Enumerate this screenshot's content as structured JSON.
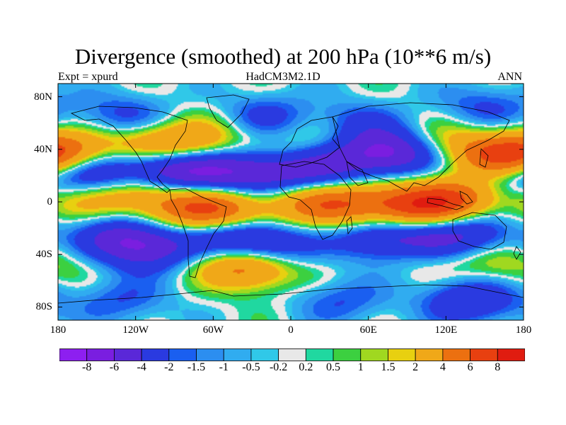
{
  "header": {
    "title": "Divergence (smoothed) at 200 hPa (10**6 m/s)",
    "left": "Expt = xpurd",
    "center": "HadCM3M2.1D",
    "right": "ANN"
  },
  "axes": {
    "y_ticks": [
      {
        "label": "80N",
        "lat": 80
      },
      {
        "label": "40N",
        "lat": 40
      },
      {
        "label": "0",
        "lat": 0
      },
      {
        "label": "40S",
        "lat": -40
      },
      {
        "label": "80S",
        "lat": -80
      }
    ],
    "x_ticks": [
      {
        "label": "180",
        "lon": -180
      },
      {
        "label": "120W",
        "lon": -120
      },
      {
        "label": "60W",
        "lon": -60
      },
      {
        "label": "0",
        "lon": 0
      },
      {
        "label": "60E",
        "lon": 60
      },
      {
        "label": "120E",
        "lon": 120
      },
      {
        "label": "180",
        "lon": 180
      }
    ],
    "lon_range": [
      -180,
      180
    ],
    "lat_range": [
      -90,
      90
    ]
  },
  "colorbar": {
    "labels": [
      "-8",
      "-6",
      "-4",
      "-2",
      "-1.5",
      "-1",
      "-0.5",
      "-0.2",
      "0.2",
      "0.5",
      "1",
      "1.5",
      "2",
      "4",
      "6",
      "8"
    ],
    "colors": [
      "#8d1ff0",
      "#7a1ee0",
      "#5a28d8",
      "#2a3ae0",
      "#1a5ff0",
      "#2c8ef0",
      "#30acf0",
      "#30c8e8",
      "#e8e8e8",
      "#20d8a0",
      "#3cd040",
      "#a0d820",
      "#e8d010",
      "#f0a818",
      "#ec7010",
      "#e84010",
      "#e01c10"
    ]
  },
  "field": {
    "blobs": [
      {
        "lon": -170,
        "lat": 37,
        "v": 3
      },
      {
        "lon": -110,
        "lat": 44,
        "v": 3.2
      },
      {
        "lon": -80,
        "lat": 40,
        "v": 2.8
      },
      {
        "lon": -60,
        "lat": 52,
        "v": 1.5
      },
      {
        "lon": -10,
        "lat": 32,
        "v": 1.2
      },
      {
        "lon": 25,
        "lat": 48,
        "v": 1.4
      },
      {
        "lon": 120,
        "lat": 45,
        "v": 2.5
      },
      {
        "lon": 160,
        "lat": 33,
        "v": 3.8
      },
      {
        "lon": 175,
        "lat": 36,
        "v": 3
      },
      {
        "lon": -120,
        "lat": 8,
        "v": 3.5
      },
      {
        "lon": -80,
        "lat": -5,
        "v": 3.8
      },
      {
        "lon": -40,
        "lat": -12,
        "v": 1.8
      },
      {
        "lon": -55,
        "lat": -5,
        "v": 3
      },
      {
        "lon": 10,
        "lat": 5,
        "v": 2.2
      },
      {
        "lon": 25,
        "lat": -5,
        "v": 3.2
      },
      {
        "lon": 60,
        "lat": 0,
        "v": 3.5
      },
      {
        "lon": 95,
        "lat": -5,
        "v": 3.5
      },
      {
        "lon": 115,
        "lat": -3,
        "v": 4
      },
      {
        "lon": 135,
        "lat": 5,
        "v": 3
      },
      {
        "lon": -160,
        "lat": 0,
        "v": 1.8
      },
      {
        "lon": -170,
        "lat": -25,
        "v": 2.5
      },
      {
        "lon": -40,
        "lat": -45,
        "v": 2.5
      },
      {
        "lon": -30,
        "lat": -50,
        "v": 3.8
      },
      {
        "lon": 100,
        "lat": -35,
        "v": 2
      },
      {
        "lon": 160,
        "lat": -45,
        "v": 2.5
      },
      {
        "lon": -150,
        "lat": 22,
        "v": -4.5
      },
      {
        "lon": -80,
        "lat": 22,
        "v": -4
      },
      {
        "lon": -100,
        "lat": 27,
        "v": -3.5
      },
      {
        "lon": -45,
        "lat": 25,
        "v": -3
      },
      {
        "lon": -20,
        "lat": 22,
        "v": -3.2
      },
      {
        "lon": 10,
        "lat": 22,
        "v": -3.5
      },
      {
        "lon": 40,
        "lat": 30,
        "v": -2.5
      },
      {
        "lon": 70,
        "lat": 40,
        "v": -3.8
      },
      {
        "lon": 90,
        "lat": 36,
        "v": -3
      },
      {
        "lon": 170,
        "lat": 20,
        "v": -2.5
      },
      {
        "lon": -140,
        "lat": -25,
        "v": -4.2
      },
      {
        "lon": -110,
        "lat": -35,
        "v": -5
      },
      {
        "lon": -40,
        "lat": -27,
        "v": -4.8
      },
      {
        "lon": -15,
        "lat": -35,
        "v": -3.5
      },
      {
        "lon": 70,
        "lat": -27,
        "v": -4.5
      },
      {
        "lon": 110,
        "lat": -30,
        "v": -4
      },
      {
        "lon": 140,
        "lat": -20,
        "v": -3
      },
      {
        "lon": 170,
        "lat": -30,
        "v": -2.2
      },
      {
        "lon": -130,
        "lat": 65,
        "v": -2.5
      },
      {
        "lon": -20,
        "lat": 65,
        "v": -2.5
      },
      {
        "lon": 50,
        "lat": 60,
        "v": -2.2
      },
      {
        "lon": 140,
        "lat": -75,
        "v": -4
      },
      {
        "lon": -130,
        "lat": -75,
        "v": -2
      },
      {
        "lon": 40,
        "lat": -75,
        "v": -2
      },
      {
        "lon": 150,
        "lat": 72,
        "v": -2.2
      }
    ]
  }
}
